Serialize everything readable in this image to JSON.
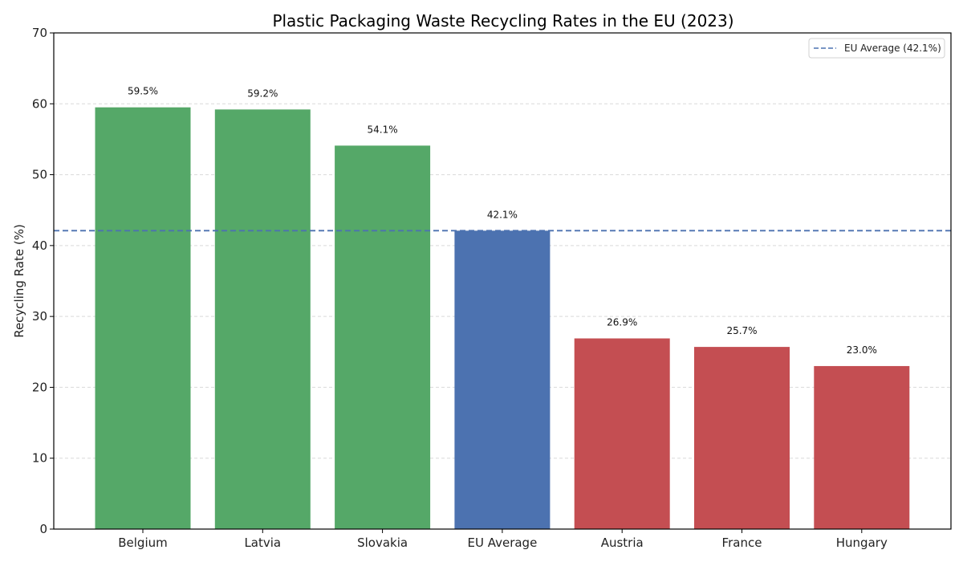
{
  "chart_data": {
    "type": "bar",
    "title": "Plastic Packaging Waste Recycling Rates in the EU (2023)",
    "xlabel": "",
    "ylabel": "Recycling Rate (%)",
    "ylim": [
      0,
      70
    ],
    "yticks": [
      0,
      10,
      20,
      30,
      40,
      50,
      60,
      70
    ],
    "grid": true,
    "categories": [
      "Belgium",
      "Latvia",
      "Slovakia",
      "EU Average",
      "Austria",
      "France",
      "Hungary"
    ],
    "values": [
      59.5,
      59.2,
      54.1,
      42.1,
      26.9,
      25.7,
      23.0
    ],
    "data_labels": [
      "59.5%",
      "59.2%",
      "54.1%",
      "42.1%",
      "26.9%",
      "25.7%",
      "23.0%"
    ],
    "bar_colors": [
      "#55a868",
      "#55a868",
      "#55a868",
      "#4c72b0",
      "#c44e52",
      "#c44e52",
      "#c44e52"
    ],
    "reference_line": {
      "value": 42.1,
      "label": "EU Average (42.1%)",
      "color": "#4c72b0",
      "style": "dashed"
    },
    "legend": {
      "position": "top-right",
      "entries": [
        "EU Average (42.1%)"
      ]
    }
  }
}
